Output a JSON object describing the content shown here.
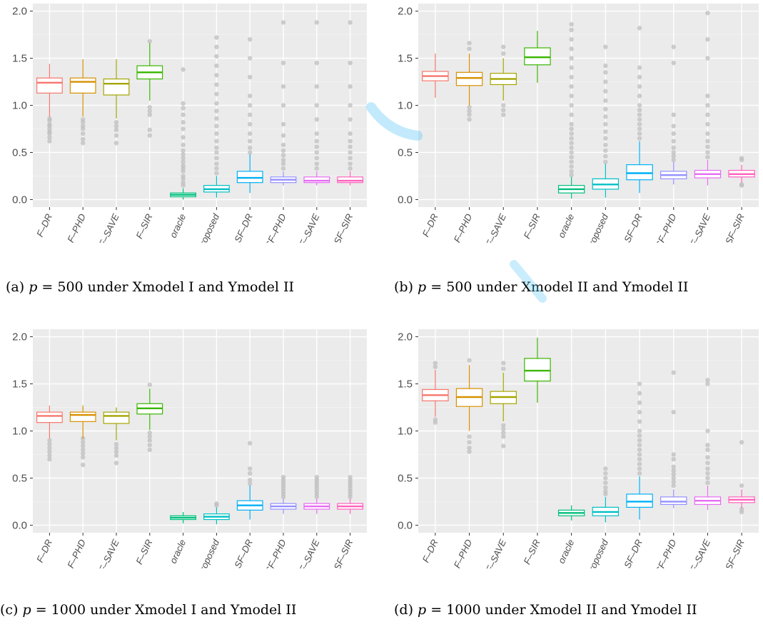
{
  "colors": {
    "panel_bg": "#ebebeb",
    "grid": "#ffffff",
    "outlier": "#bdbdbd",
    "watermark": "#4fc3f7"
  },
  "categories": [
    "F–DR",
    "F–PHD",
    "F–SAVE",
    "F–SIR",
    "oracle",
    "Proposed",
    "SF–DR",
    "SF–PHD",
    "SF–SAVE",
    "SF–SIR"
  ],
  "series_colors": [
    "#F8766D",
    "#D89000",
    "#A3A500",
    "#39B600",
    "#00BF7D",
    "#00BFC4",
    "#00B0F6",
    "#9590FF",
    "#E76BF3",
    "#FF62BC"
  ],
  "chart_data": [
    {
      "type": "box",
      "caption": {
        "label": "(a)",
        "var": "p",
        "eq": " = 500 under Xmodel I and Ymodel II"
      },
      "ylim": [
        -0.08,
        2.08
      ],
      "yticks": [
        "0.0",
        "0.5",
        "1.0",
        "1.5",
        "2.0"
      ],
      "boxes": [
        {
          "q1": 1.13,
          "median": 1.24,
          "q3": 1.29,
          "low": 0.88,
          "high": 1.44,
          "outliers": [
            0.62,
            0.66,
            0.7,
            0.72,
            0.75,
            0.78,
            0.8,
            0.84,
            0.86
          ]
        },
        {
          "q1": 1.13,
          "median": 1.25,
          "q3": 1.29,
          "low": 0.88,
          "high": 1.49,
          "outliers": [
            0.6,
            0.64,
            0.7,
            0.75,
            0.78,
            0.82,
            0.85
          ]
        },
        {
          "q1": 1.11,
          "median": 1.23,
          "q3": 1.28,
          "low": 0.86,
          "high": 1.49,
          "outliers": [
            0.6,
            0.68,
            0.74,
            0.78,
            0.82
          ]
        },
        {
          "q1": 1.28,
          "median": 1.35,
          "q3": 1.42,
          "low": 1.05,
          "high": 1.66,
          "outliers": [
            0.68,
            0.74,
            0.9,
            0.94,
            0.98,
            1.68
          ]
        },
        {
          "q1": 0.03,
          "median": 0.05,
          "q3": 0.07,
          "low": 0.0,
          "high": 0.12,
          "outliers": [
            0.15,
            0.18,
            0.22,
            0.25,
            0.3,
            0.33,
            0.36,
            0.4,
            0.44,
            0.48,
            0.52,
            0.58,
            0.66,
            0.75,
            0.82,
            0.9,
            0.97,
            1.02,
            1.38
          ]
        },
        {
          "q1": 0.08,
          "median": 0.11,
          "q3": 0.15,
          "low": 0.02,
          "high": 0.25,
          "outliers": [
            0.28,
            0.33,
            0.38,
            0.44,
            0.5,
            0.55,
            0.62,
            0.7,
            0.78,
            0.86,
            0.94,
            1.02,
            1.12,
            1.22,
            1.32,
            1.42,
            1.52,
            1.62,
            1.72
          ]
        },
        {
          "q1": 0.18,
          "median": 0.23,
          "q3": 0.3,
          "low": 0.07,
          "high": 0.48,
          "outliers": [
            0.5,
            0.55,
            0.62,
            0.7,
            0.8,
            0.9,
            1.0,
            1.1,
            1.3,
            1.5,
            1.7
          ]
        },
        {
          "q1": 0.18,
          "median": 0.21,
          "q3": 0.24,
          "low": 0.15,
          "high": 0.3,
          "outliers": [
            0.33,
            0.38,
            0.42,
            0.47,
            0.52,
            0.58,
            0.68,
            0.8,
            1.0,
            1.2,
            1.45,
            1.88
          ]
        },
        {
          "q1": 0.18,
          "median": 0.2,
          "q3": 0.24,
          "low": 0.15,
          "high": 0.3,
          "outliers": [
            0.33,
            0.38,
            0.44,
            0.5,
            0.56,
            0.62,
            0.7,
            0.85,
            1.0,
            1.2,
            1.45,
            1.88
          ]
        },
        {
          "q1": 0.18,
          "median": 0.2,
          "q3": 0.24,
          "low": 0.15,
          "high": 0.3,
          "outliers": [
            0.33,
            0.38,
            0.44,
            0.5,
            0.56,
            0.62,
            0.7,
            0.85,
            1.0,
            1.2,
            1.45,
            1.88
          ]
        }
      ]
    },
    {
      "type": "box",
      "caption": {
        "label": "(b)",
        "var": "p",
        "eq": " = 500 under Xmodel II and Ymodel II"
      },
      "ylim": [
        -0.08,
        2.08
      ],
      "yticks": [
        "0.0",
        "0.5",
        "1.0",
        "1.5",
        "2.0"
      ],
      "boxes": [
        {
          "q1": 1.26,
          "median": 1.31,
          "q3": 1.36,
          "low": 1.08,
          "high": 1.55,
          "outliers": []
        },
        {
          "q1": 1.21,
          "median": 1.29,
          "q3": 1.35,
          "low": 1.0,
          "high": 1.55,
          "outliers": [
            0.85,
            0.9,
            0.94,
            0.98,
            1.6,
            1.66
          ]
        },
        {
          "q1": 1.22,
          "median": 1.28,
          "q3": 1.34,
          "low": 1.05,
          "high": 1.5,
          "outliers": [
            0.9,
            0.95,
            1.0,
            1.55,
            1.62
          ]
        },
        {
          "q1": 1.43,
          "median": 1.51,
          "q3": 1.61,
          "low": 1.24,
          "high": 1.79,
          "outliers": []
        },
        {
          "q1": 0.07,
          "median": 0.11,
          "q3": 0.15,
          "low": 0.01,
          "high": 0.24,
          "outliers": [
            0.26,
            0.3,
            0.35,
            0.4,
            0.45,
            0.5,
            0.55,
            0.6,
            0.65,
            0.7,
            0.75,
            0.8,
            0.9,
            1.0,
            1.1,
            1.2,
            1.3,
            1.4,
            1.5,
            1.6,
            1.7,
            1.8,
            1.86
          ]
        },
        {
          "q1": 0.11,
          "median": 0.16,
          "q3": 0.22,
          "low": 0.02,
          "high": 0.38,
          "outliers": [
            0.4,
            0.46,
            0.52,
            0.58,
            0.65,
            0.72,
            0.8,
            0.88,
            0.96,
            1.05,
            1.15,
            1.25,
            1.35,
            1.42,
            1.62
          ]
        },
        {
          "q1": 0.21,
          "median": 0.28,
          "q3": 0.37,
          "low": 0.07,
          "high": 0.62,
          "outliers": [
            0.65,
            0.7,
            0.75,
            0.8,
            0.85,
            0.9,
            0.95,
            1.0,
            1.1,
            1.2,
            1.3,
            1.4,
            1.82
          ]
        },
        {
          "q1": 0.22,
          "median": 0.26,
          "q3": 0.3,
          "low": 0.16,
          "high": 0.4,
          "outliers": [
            0.42,
            0.46,
            0.5,
            0.55,
            0.62,
            0.7,
            0.78,
            0.9,
            1.45,
            1.62
          ]
        },
        {
          "q1": 0.23,
          "median": 0.27,
          "q3": 0.31,
          "low": 0.15,
          "high": 0.42,
          "outliers": [
            0.45,
            0.5,
            0.56,
            0.62,
            0.7,
            0.8,
            0.9,
            1.0,
            1.1,
            1.5,
            1.7,
            1.98
          ]
        },
        {
          "q1": 0.24,
          "median": 0.27,
          "q3": 0.31,
          "low": 0.18,
          "high": 0.37,
          "outliers": [
            0.15,
            0.16,
            0.42,
            0.44
          ]
        }
      ]
    },
    {
      "type": "box",
      "caption": {
        "label": "(c)",
        "var": "p",
        "eq": " = 1000 under Xmodel I and Ymodel II"
      },
      "ylim": [
        -0.08,
        2.08
      ],
      "yticks": [
        "0.0",
        "0.5",
        "1.0",
        "1.5",
        "2.0"
      ],
      "boxes": [
        {
          "q1": 1.09,
          "median": 1.16,
          "q3": 1.2,
          "low": 0.92,
          "high": 1.27,
          "outliers": [
            0.7,
            0.74,
            0.78,
            0.82,
            0.86,
            0.9
          ]
        },
        {
          "q1": 1.1,
          "median": 1.17,
          "q3": 1.2,
          "low": 0.92,
          "high": 1.27,
          "outliers": [
            0.64,
            0.72,
            0.76,
            0.8,
            0.84,
            0.88,
            0.92
          ]
        },
        {
          "q1": 1.08,
          "median": 1.16,
          "q3": 1.2,
          "low": 0.9,
          "high": 1.25,
          "outliers": [
            0.66,
            0.74,
            0.78,
            0.82,
            0.86
          ]
        },
        {
          "q1": 1.18,
          "median": 1.24,
          "q3": 1.29,
          "low": 1.01,
          "high": 1.45,
          "outliers": [
            0.8,
            0.85,
            0.9,
            0.94,
            0.98,
            1.49
          ]
        },
        {
          "q1": 0.06,
          "median": 0.08,
          "q3": 0.1,
          "low": 0.02,
          "high": 0.14,
          "outliers": []
        },
        {
          "q1": 0.06,
          "median": 0.09,
          "q3": 0.12,
          "low": 0.01,
          "high": 0.19,
          "outliers": [
            0.21,
            0.23
          ]
        },
        {
          "q1": 0.16,
          "median": 0.21,
          "q3": 0.26,
          "low": 0.06,
          "high": 0.42,
          "outliers": [
            0.44,
            0.48,
            0.55,
            0.6,
            0.87
          ]
        },
        {
          "q1": 0.17,
          "median": 0.2,
          "q3": 0.23,
          "low": 0.12,
          "high": 0.28,
          "outliers": [
            0.3,
            0.33,
            0.36,
            0.39,
            0.42,
            0.45,
            0.48,
            0.51
          ]
        },
        {
          "q1": 0.17,
          "median": 0.2,
          "q3": 0.23,
          "low": 0.12,
          "high": 0.28,
          "outliers": [
            0.3,
            0.33,
            0.36,
            0.39,
            0.42,
            0.45,
            0.48,
            0.51
          ]
        },
        {
          "q1": 0.17,
          "median": 0.2,
          "q3": 0.23,
          "low": 0.12,
          "high": 0.28,
          "outliers": [
            0.3,
            0.33,
            0.36,
            0.39,
            0.42,
            0.45,
            0.48,
            0.51
          ]
        }
      ]
    },
    {
      "type": "box",
      "caption": {
        "label": "(d)",
        "var": "p",
        "eq": " = 1000 under Xmodel II and Ymodel II"
      },
      "ylim": [
        -0.08,
        2.08
      ],
      "yticks": [
        "0.0",
        "0.5",
        "1.0",
        "1.5",
        "2.0"
      ],
      "boxes": [
        {
          "q1": 1.32,
          "median": 1.38,
          "q3": 1.44,
          "low": 1.15,
          "high": 1.65,
          "outliers": [
            1.09,
            1.12,
            1.68,
            1.72
          ]
        },
        {
          "q1": 1.26,
          "median": 1.36,
          "q3": 1.45,
          "low": 1.0,
          "high": 1.7,
          "outliers": [
            0.78,
            0.82,
            0.88,
            0.94,
            1.75
          ]
        },
        {
          "q1": 1.29,
          "median": 1.36,
          "q3": 1.42,
          "low": 1.1,
          "high": 1.62,
          "outliers": [
            0.84,
            0.94,
            0.98,
            1.02,
            1.06,
            1.66,
            1.72
          ]
        },
        {
          "q1": 1.53,
          "median": 1.64,
          "q3": 1.77,
          "low": 1.3,
          "high": 1.99,
          "outliers": []
        },
        {
          "q1": 0.1,
          "median": 0.13,
          "q3": 0.16,
          "low": 0.05,
          "high": 0.21,
          "outliers": []
        },
        {
          "q1": 0.1,
          "median": 0.14,
          "q3": 0.19,
          "low": 0.03,
          "high": 0.3,
          "outliers": [
            0.33,
            0.36,
            0.4,
            0.45,
            0.5,
            0.55,
            0.6
          ]
        },
        {
          "q1": 0.19,
          "median": 0.25,
          "q3": 0.33,
          "low": 0.06,
          "high": 0.52,
          "outliers": [
            0.55,
            0.6,
            0.65,
            0.7,
            0.75,
            0.8,
            0.85,
            0.9,
            0.95,
            1.0,
            1.1,
            1.2,
            1.3,
            1.4,
            1.5
          ]
        },
        {
          "q1": 0.22,
          "median": 0.25,
          "q3": 0.3,
          "low": 0.18,
          "high": 0.38,
          "outliers": [
            0.42,
            0.46,
            0.5,
            0.54,
            0.58,
            0.62,
            0.7,
            0.75,
            1.2,
            1.62
          ]
        },
        {
          "q1": 0.22,
          "median": 0.26,
          "q3": 0.3,
          "low": 0.16,
          "high": 0.42,
          "outliers": [
            0.45,
            0.5,
            0.55,
            0.6,
            0.66,
            0.72,
            0.8,
            0.85,
            1.0,
            1.5,
            1.54
          ]
        },
        {
          "q1": 0.24,
          "median": 0.27,
          "q3": 0.3,
          "low": 0.18,
          "high": 0.38,
          "outliers": [
            0.14,
            0.17,
            0.42,
            0.88
          ]
        }
      ]
    }
  ]
}
